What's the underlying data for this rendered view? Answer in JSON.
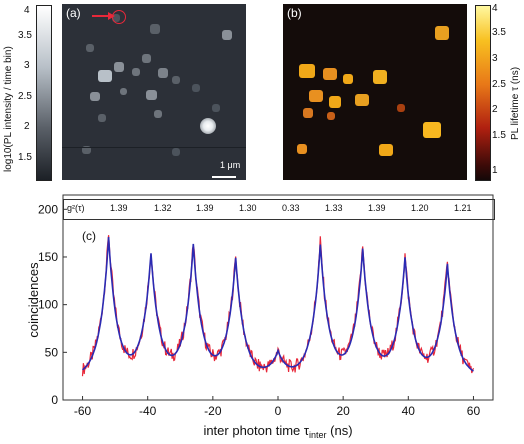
{
  "panel_a": {
    "label": "(a)",
    "scalebar": "1 μm",
    "colorbar_label": "log10(PL intensity / time bin)",
    "colorbar_ticks": [
      "4",
      "3.5",
      "3",
      "2.5",
      "2",
      "1.5"
    ]
  },
  "panel_b": {
    "label": "(b)",
    "colorbar_label": "PL lifetime τ (ns)",
    "colorbar_ticks": [
      "4",
      "3.5",
      "3",
      "2.5",
      "2",
      "1.5",
      "1"
    ]
  },
  "panel_c": {
    "label": "(c)",
    "g2_label": "g²(τ)",
    "g2_values": [
      "1.39",
      "1.32",
      "1.39",
      "1.30",
      "0.33",
      "1.33",
      "1.39",
      "1.20",
      "1.21"
    ]
  },
  "chart_data": {
    "type": "line",
    "xlabel": "inter photon time τ_inter (ns)",
    "ylabel": "coincidences",
    "xlim": [
      -66,
      66
    ],
    "ylim": [
      0,
      215
    ],
    "xticks": [
      -60,
      -40,
      -20,
      0,
      20,
      40,
      60
    ],
    "yticks": [
      0,
      50,
      100,
      150,
      200
    ],
    "peak_positions": [
      -52,
      -39,
      -26,
      -13,
      0,
      13,
      26,
      39,
      52
    ],
    "series": [
      {
        "peak_heights": [
          175,
          155,
          165,
          150,
          50,
          165,
          160,
          150,
          145
        ],
        "baseline": 25,
        "color": "#e8283a"
      },
      {
        "peak_heights": [
          170,
          152,
          162,
          148,
          50,
          162,
          157,
          148,
          142
        ],
        "baseline": 25,
        "color": "#2b2bb3"
      }
    ]
  }
}
